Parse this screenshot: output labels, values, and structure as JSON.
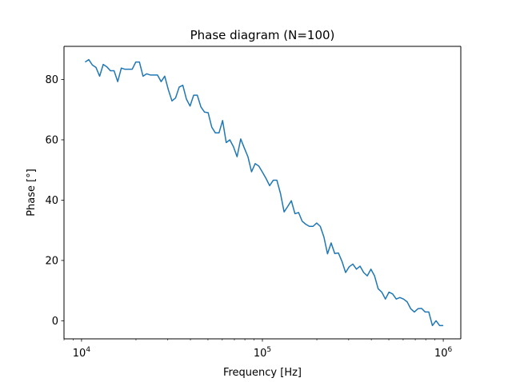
{
  "chart_data": {
    "type": "line",
    "title": "Phase diagram (N=100)",
    "xlabel": "Frequency [Hz]",
    "ylabel": "Phase [°]",
    "x_scale": "log",
    "xlim": [
      8000,
      1250000
    ],
    "ylim": [
      -6,
      91
    ],
    "grid": false,
    "x_ticks": [
      {
        "value": 10000,
        "base": "10",
        "exp": "4"
      },
      {
        "value": 100000,
        "base": "10",
        "exp": "5"
      },
      {
        "value": 1000000,
        "base": "10",
        "exp": "6"
      }
    ],
    "y_ticks": [
      {
        "value": 0,
        "label": "0"
      },
      {
        "value": 20,
        "label": "20"
      },
      {
        "value": 40,
        "label": "40"
      },
      {
        "value": 60,
        "label": "60"
      },
      {
        "value": 80,
        "label": "80"
      }
    ],
    "series": [
      {
        "color": "#1f77b4",
        "x": [
          10473,
          10965,
          11482,
          12023,
          12589,
          13183,
          13804,
          14454,
          15136,
          15849,
          16596,
          17378,
          18197,
          19055,
          19953,
          20893,
          21878,
          22909,
          23988,
          25119,
          26303,
          27542,
          28840,
          30200,
          31623,
          33113,
          34674,
          36308,
          38019,
          39811,
          41687,
          43652,
          45709,
          47863,
          50119,
          52481,
          54954,
          57544,
          60256,
          63096,
          66069,
          69183,
          72444,
          75858,
          79433,
          83176,
          87096,
          91201,
          95499,
          100000,
          104713,
          109648,
          114815,
          120226,
          125893,
          131826,
          138038,
          144544,
          151356,
          158489,
          165959,
          173780,
          181970,
          190546,
          199526,
          208930,
          218776,
          229087,
          239883,
          251189,
          263027,
          275423,
          288403,
          301995,
          316228,
          331131,
          346737,
          363078,
          380189,
          398107,
          416869,
          436516,
          457088,
          478630,
          501187,
          524807,
          549541,
          575440,
          602560,
          630957,
          660693,
          691831,
          724436,
          758578,
          794328,
          831764,
          870964,
          912011,
          954993,
          1000000
        ],
        "y": [
          85.8,
          86.6,
          84.8,
          84.0,
          81.1,
          85.0,
          84.2,
          82.9,
          82.9,
          79.3,
          83.8,
          83.4,
          83.4,
          83.4,
          85.8,
          85.8,
          81.1,
          81.9,
          81.5,
          81.5,
          81.5,
          79.3,
          81.1,
          76.6,
          72.9,
          73.9,
          77.5,
          78.1,
          73.5,
          71.2,
          74.8,
          74.8,
          70.9,
          69.2,
          69.0,
          64.2,
          62.3,
          62.3,
          66.4,
          59.1,
          60.0,
          57.7,
          54.4,
          60.3,
          57.3,
          54.4,
          49.4,
          52.1,
          51.3,
          49.3,
          47.2,
          44.8,
          46.6,
          46.6,
          42.2,
          36.1,
          37.9,
          39.8,
          35.5,
          35.9,
          33.0,
          32.0,
          31.3,
          31.3,
          32.4,
          31.3,
          27.8,
          22.2,
          25.8,
          22.3,
          22.5,
          19.7,
          16.0,
          17.9,
          18.8,
          17.1,
          18.1,
          16.0,
          14.9,
          17.1,
          14.9,
          10.6,
          9.5,
          7.2,
          9.5,
          8.9,
          7.2,
          7.7,
          7.2,
          6.3,
          4.0,
          2.9,
          4.0,
          4.1,
          2.9,
          2.9,
          -1.6,
          0.0,
          -1.6,
          -1.6
        ]
      }
    ]
  }
}
